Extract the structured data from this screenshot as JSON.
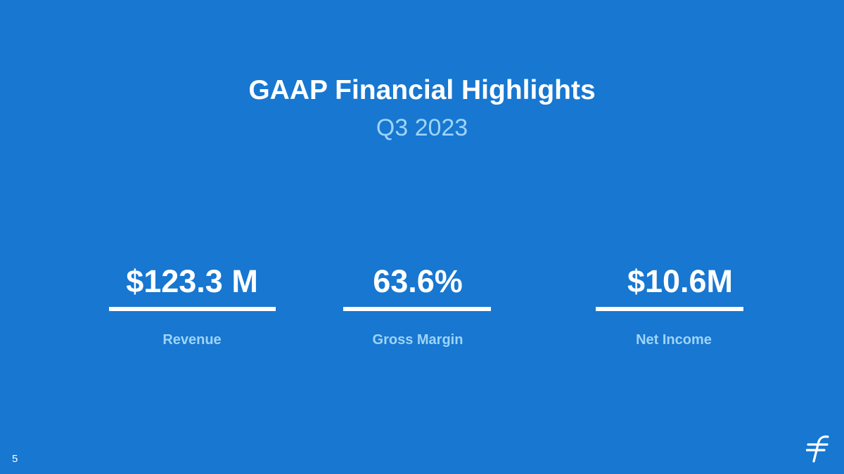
{
  "colors": {
    "background": "#1777d1",
    "text_primary": "#ffffff",
    "text_accent": "#9fd4f7"
  },
  "slide": {
    "title": "GAAP Financial Highlights",
    "subtitle": "Q3 2023",
    "page_number": "5",
    "logo_icon": "brand-f-logo-icon"
  },
  "metrics": [
    {
      "value": "$123.3 M",
      "label": "Revenue"
    },
    {
      "value": "63.6%",
      "label": "Gross Margin"
    },
    {
      "value": "$10.6M",
      "label": "Net Income"
    }
  ]
}
